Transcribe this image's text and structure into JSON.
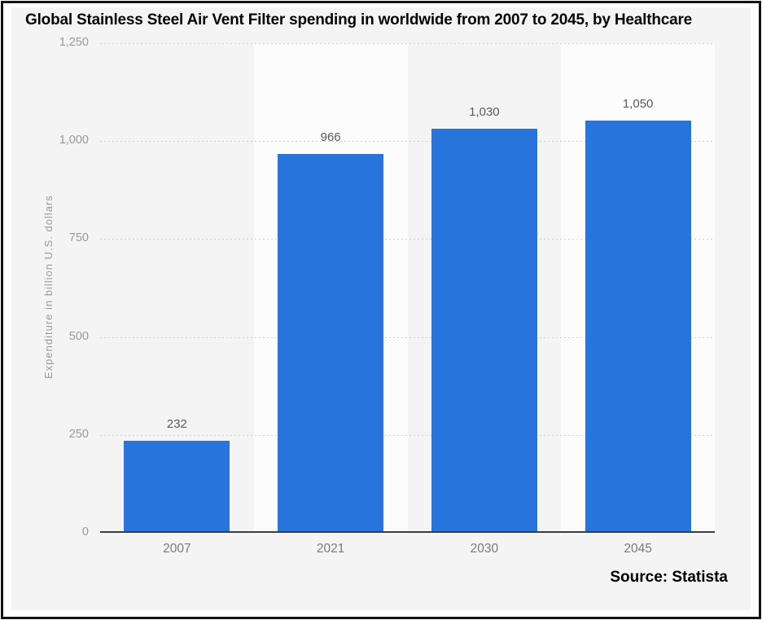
{
  "chart_data": {
    "type": "bar",
    "title": "Global Stainless Steel Air Vent Filter spending in worldwide from 2007 to 2045, by Healthcare",
    "categories": [
      "2007",
      "2021",
      "2030",
      "2045"
    ],
    "values": [
      232,
      966,
      1030,
      1050
    ],
    "value_labels": [
      "232",
      "966",
      "1,030",
      "1,050"
    ],
    "xlabel": "",
    "ylabel": "Expenditure in billion U.S. dollars",
    "ylim": [
      0,
      1250
    ],
    "yticks": [
      {
        "value": 0,
        "label": "0"
      },
      {
        "value": 250,
        "label": "250"
      },
      {
        "value": 500,
        "label": "500"
      },
      {
        "value": 750,
        "label": "750"
      },
      {
        "value": 1000,
        "label": "1,000"
      },
      {
        "value": 1250,
        "label": "1,250"
      }
    ],
    "grid": "horizontal-dotted",
    "legend": "none",
    "bar_color": "#2774dc",
    "panel_color": "#f4f4f4",
    "alt_band_color": "#fcfcfc"
  },
  "source": {
    "label": "Source: Statista"
  }
}
